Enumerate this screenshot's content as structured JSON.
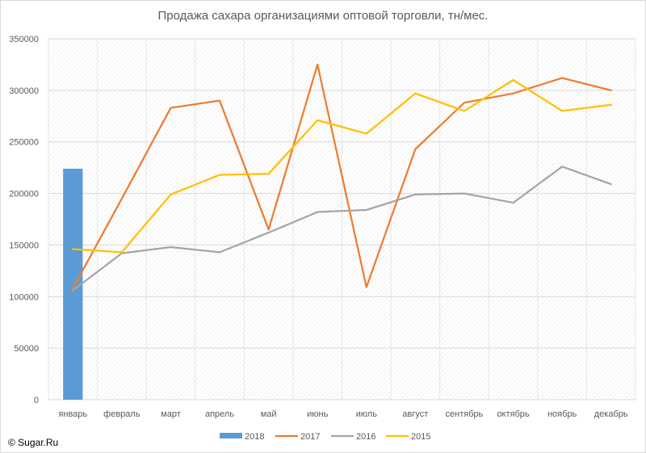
{
  "chart_data": {
    "type": "line",
    "title": "Продажа сахара организациями оптовой торговли, тн/мес.",
    "xlabel": "",
    "ylabel": "",
    "categories": [
      "январь",
      "февраль",
      "март",
      "апрель",
      "май",
      "июнь",
      "июль",
      "август",
      "сентябрь",
      "октябрь",
      "ноябрь",
      "декабрь"
    ],
    "yticks": [
      "0",
      "50000",
      "100000",
      "150000",
      "200000",
      "250000",
      "300000",
      "350000"
    ],
    "ylim": [
      0,
      350000
    ],
    "grid": true,
    "legend_position": "bottom",
    "series": [
      {
        "name": "2018",
        "type": "bar",
        "color": "#5b9bd5",
        "values": [
          224000,
          null,
          null,
          null,
          null,
          null,
          null,
          null,
          null,
          null,
          null,
          null
        ]
      },
      {
        "name": "2017",
        "type": "line",
        "color": "#ed7d31",
        "values": [
          108000,
          195000,
          283000,
          290000,
          165000,
          325000,
          109000,
          243000,
          288000,
          297000,
          312000,
          300000
        ]
      },
      {
        "name": "2016",
        "type": "line",
        "color": "#a5a5a5",
        "values": [
          106000,
          142000,
          148000,
          143000,
          162000,
          182000,
          184000,
          199000,
          200000,
          191000,
          226000,
          209000
        ]
      },
      {
        "name": "2015",
        "type": "line",
        "color": "#ffc000",
        "values": [
          146000,
          143000,
          199000,
          218000,
          219000,
          271000,
          258000,
          297000,
          280000,
          310000,
          280000,
          286000
        ]
      }
    ]
  },
  "copyright": "© Sugar.Ru"
}
